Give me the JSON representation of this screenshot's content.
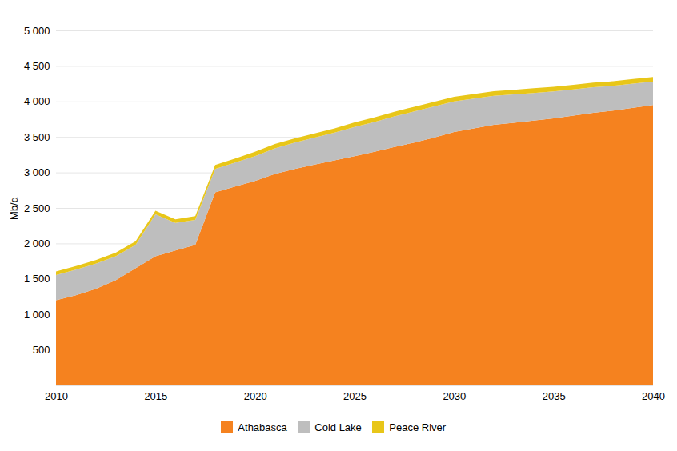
{
  "chart_data": {
    "type": "area",
    "stacked": true,
    "ylabel": "Mb/d",
    "x": [
      2010,
      2011,
      2012,
      2013,
      2014,
      2015,
      2016,
      2017,
      2018,
      2019,
      2020,
      2021,
      2022,
      2023,
      2024,
      2025,
      2026,
      2027,
      2028,
      2029,
      2030,
      2031,
      2032,
      2033,
      2034,
      2035,
      2036,
      2037,
      2038,
      2039,
      2040
    ],
    "series": [
      {
        "name": "Athabasca",
        "color": "#F5821F",
        "values": [
          1200,
          1270,
          1360,
          1480,
          1650,
          1820,
          1900,
          1980,
          2720,
          2800,
          2880,
          2980,
          3050,
          3110,
          3170,
          3230,
          3290,
          3360,
          3420,
          3490,
          3570,
          3620,
          3670,
          3700,
          3730,
          3760,
          3800,
          3840,
          3870,
          3910,
          3950
        ]
      },
      {
        "name": "Cold Lake",
        "color": "#BEBEBE",
        "values": [
          355,
          360,
          355,
          340,
          330,
          590,
          390,
          350,
          330,
          340,
          350,
          360,
          370,
          380,
          390,
          410,
          420,
          430,
          440,
          440,
          430,
          420,
          410,
          400,
          390,
          380,
          370,
          360,
          350,
          340,
          330
        ]
      },
      {
        "name": "Peace River",
        "color": "#E8C619",
        "values": [
          50,
          50,
          50,
          50,
          50,
          50,
          50,
          55,
          55,
          55,
          60,
          60,
          60,
          60,
          60,
          65,
          65,
          65,
          65,
          65,
          65,
          65,
          65,
          65,
          65,
          65,
          65,
          65,
          65,
          65,
          65
        ]
      }
    ],
    "xlim": [
      2010,
      2040
    ],
    "xticks": [
      2010,
      2015,
      2020,
      2025,
      2030,
      2035,
      2040
    ],
    "ylim": [
      0,
      5000
    ],
    "yticks": [
      {
        "value": 0,
        "label": ""
      },
      500,
      {
        "value": 1000,
        "label": "1 000"
      },
      {
        "value": 1500,
        "label": "1 500"
      },
      {
        "value": 2000,
        "label": "2 000"
      },
      {
        "value": 2500,
        "label": "2 500"
      },
      {
        "value": 3000,
        "label": "3 000"
      },
      {
        "value": 3500,
        "label": "3 500"
      },
      {
        "value": 4000,
        "label": "4 000"
      },
      {
        "value": 4500,
        "label": "4 500"
      },
      {
        "value": 5000,
        "label": "5 000"
      }
    ],
    "grid": true,
    "legend": "bottom"
  }
}
